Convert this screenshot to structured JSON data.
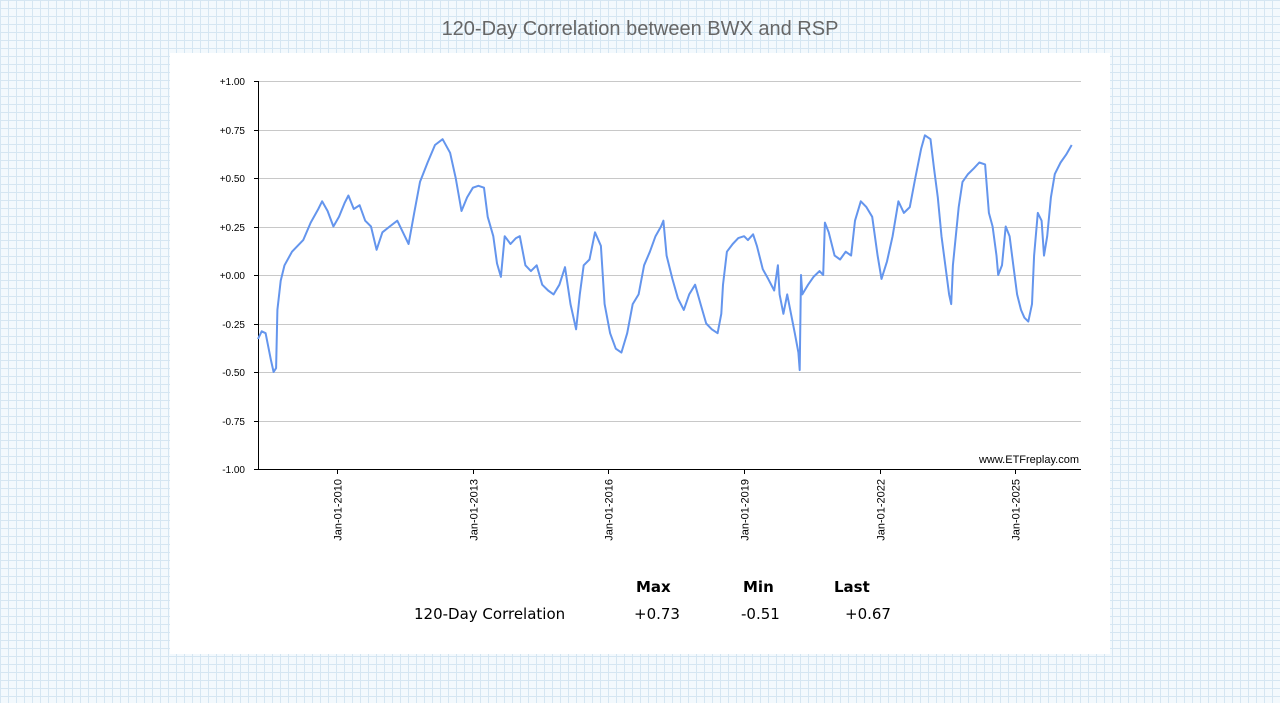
{
  "chart_data": {
    "type": "line",
    "title": "120-Day Correlation between BWX and RSP",
    "xlabel": "",
    "ylabel": "",
    "ylim": [
      -1.0,
      1.0
    ],
    "yticks": [
      "+1.00",
      "+0.75",
      "+0.50",
      "+0.25",
      "+0.00",
      "-0.25",
      "-0.50",
      "-0.75",
      "-1.00"
    ],
    "ytick_values": [
      1.0,
      0.75,
      0.5,
      0.25,
      0.0,
      -0.25,
      -0.5,
      -0.75,
      -1.0
    ],
    "xlim": [
      "2008-04-01",
      "2026-06-15"
    ],
    "xticks": [
      "Jan-01-2010",
      "Jan-01-2013",
      "Jan-01-2016",
      "Jan-01-2019",
      "Jan-01-2022",
      "Jan-01-2025"
    ],
    "xtick_dates": [
      "2010-01-01",
      "2013-01-01",
      "2016-01-01",
      "2019-01-01",
      "2022-01-01",
      "2025-01-01"
    ],
    "grid": "horizontal",
    "line_color": "#6495ed",
    "series": [
      {
        "name": "120-Day Correlation",
        "points": [
          [
            "2008-04-01",
            -0.33
          ],
          [
            "2008-05-01",
            -0.29
          ],
          [
            "2008-06-01",
            -0.3
          ],
          [
            "2008-07-15",
            -0.44
          ],
          [
            "2008-08-05",
            -0.5
          ],
          [
            "2008-08-25",
            -0.48
          ],
          [
            "2008-09-05",
            -0.18
          ],
          [
            "2008-10-01",
            -0.03
          ],
          [
            "2008-11-01",
            0.05
          ],
          [
            "2009-01-01",
            0.12
          ],
          [
            "2009-04-01",
            0.18
          ],
          [
            "2009-06-01",
            0.27
          ],
          [
            "2009-08-01",
            0.34
          ],
          [
            "2009-09-01",
            0.38
          ],
          [
            "2009-10-15",
            0.33
          ],
          [
            "2009-12-01",
            0.25
          ],
          [
            "2010-01-15",
            0.3
          ],
          [
            "2010-03-01",
            0.37
          ],
          [
            "2010-04-01",
            0.41
          ],
          [
            "2010-05-15",
            0.34
          ],
          [
            "2010-07-01",
            0.36
          ],
          [
            "2010-08-15",
            0.28
          ],
          [
            "2010-10-01",
            0.25
          ],
          [
            "2010-11-15",
            0.13
          ],
          [
            "2011-01-01",
            0.22
          ],
          [
            "2011-03-01",
            0.25
          ],
          [
            "2011-05-01",
            0.28
          ],
          [
            "2011-07-01",
            0.2
          ],
          [
            "2011-08-01",
            0.16
          ],
          [
            "2011-09-15",
            0.32
          ],
          [
            "2011-11-01",
            0.48
          ],
          [
            "2012-01-01",
            0.58
          ],
          [
            "2012-03-01",
            0.67
          ],
          [
            "2012-05-01",
            0.7
          ],
          [
            "2012-07-01",
            0.63
          ],
          [
            "2012-08-15",
            0.5
          ],
          [
            "2012-10-01",
            0.33
          ],
          [
            "2012-11-15",
            0.4
          ],
          [
            "2013-01-01",
            0.45
          ],
          [
            "2013-02-15",
            0.46
          ],
          [
            "2013-04-01",
            0.45
          ],
          [
            "2013-05-01",
            0.3
          ],
          [
            "2013-06-15",
            0.2
          ],
          [
            "2013-07-15",
            0.06
          ],
          [
            "2013-08-15",
            -0.01
          ],
          [
            "2013-09-15",
            0.2
          ],
          [
            "2013-11-01",
            0.16
          ],
          [
            "2013-12-15",
            0.19
          ],
          [
            "2014-01-15",
            0.2
          ],
          [
            "2014-03-01",
            0.05
          ],
          [
            "2014-04-15",
            0.02
          ],
          [
            "2014-06-01",
            0.05
          ],
          [
            "2014-07-15",
            -0.05
          ],
          [
            "2014-09-01",
            -0.08
          ],
          [
            "2014-10-15",
            -0.1
          ],
          [
            "2014-12-01",
            -0.05
          ],
          [
            "2015-01-15",
            0.04
          ],
          [
            "2015-03-01",
            -0.15
          ],
          [
            "2015-04-15",
            -0.28
          ],
          [
            "2015-05-15",
            -0.1
          ],
          [
            "2015-06-15",
            0.05
          ],
          [
            "2015-08-01",
            0.08
          ],
          [
            "2015-09-15",
            0.22
          ],
          [
            "2015-11-01",
            0.15
          ],
          [
            "2015-12-01",
            -0.15
          ],
          [
            "2016-01-15",
            -0.3
          ],
          [
            "2016-03-01",
            -0.38
          ],
          [
            "2016-04-15",
            -0.4
          ],
          [
            "2016-06-01",
            -0.3
          ],
          [
            "2016-07-15",
            -0.15
          ],
          [
            "2016-09-01",
            -0.1
          ],
          [
            "2016-10-15",
            0.05
          ],
          [
            "2016-12-01",
            0.12
          ],
          [
            "2017-01-15",
            0.2
          ],
          [
            "2017-03-01",
            0.25
          ],
          [
            "2017-03-20",
            0.28
          ],
          [
            "2017-04-15",
            0.1
          ],
          [
            "2017-06-01",
            -0.02
          ],
          [
            "2017-07-15",
            -0.12
          ],
          [
            "2017-09-01",
            -0.18
          ],
          [
            "2017-10-15",
            -0.1
          ],
          [
            "2017-12-01",
            -0.05
          ],
          [
            "2018-01-15",
            -0.15
          ],
          [
            "2018-03-01",
            -0.25
          ],
          [
            "2018-04-15",
            -0.28
          ],
          [
            "2018-06-01",
            -0.3
          ],
          [
            "2018-07-01",
            -0.2
          ],
          [
            "2018-07-15",
            -0.05
          ],
          [
            "2018-08-15",
            0.12
          ],
          [
            "2018-10-01",
            0.16
          ],
          [
            "2018-11-15",
            0.19
          ],
          [
            "2019-01-01",
            0.2
          ],
          [
            "2019-02-01",
            0.18
          ],
          [
            "2019-03-15",
            0.21
          ],
          [
            "2019-04-15",
            0.15
          ],
          [
            "2019-06-01",
            0.03
          ],
          [
            "2019-07-15",
            -0.02
          ],
          [
            "2019-09-01",
            -0.08
          ],
          [
            "2019-10-01",
            0.05
          ],
          [
            "2019-10-15",
            -0.1
          ],
          [
            "2019-11-15",
            -0.2
          ],
          [
            "2019-12-15",
            -0.1
          ],
          [
            "2020-01-15",
            -0.2
          ],
          [
            "2020-02-15",
            -0.3
          ],
          [
            "2020-03-15",
            -0.4
          ],
          [
            "2020-03-25",
            -0.49
          ],
          [
            "2020-04-05",
            0.0
          ],
          [
            "2020-04-15",
            -0.1
          ],
          [
            "2020-06-01",
            -0.05
          ],
          [
            "2020-07-15",
            -0.01
          ],
          [
            "2020-09-01",
            0.02
          ],
          [
            "2020-10-01",
            0.0
          ],
          [
            "2020-10-15",
            0.27
          ],
          [
            "2020-11-15",
            0.22
          ],
          [
            "2021-01-01",
            0.1
          ],
          [
            "2021-02-15",
            0.08
          ],
          [
            "2021-04-01",
            0.12
          ],
          [
            "2021-05-15",
            0.1
          ],
          [
            "2021-06-15",
            0.28
          ],
          [
            "2021-08-01",
            0.38
          ],
          [
            "2021-09-15",
            0.35
          ],
          [
            "2021-11-01",
            0.3
          ],
          [
            "2021-12-15",
            0.1
          ],
          [
            "2022-01-15",
            -0.02
          ],
          [
            "2022-03-01",
            0.07
          ],
          [
            "2022-04-15",
            0.2
          ],
          [
            "2022-06-01",
            0.38
          ],
          [
            "2022-07-15",
            0.32
          ],
          [
            "2022-09-01",
            0.35
          ],
          [
            "2022-10-15",
            0.5
          ],
          [
            "2022-12-01",
            0.65
          ],
          [
            "2023-01-01",
            0.72
          ],
          [
            "2023-02-15",
            0.7
          ],
          [
            "2023-03-15",
            0.55
          ],
          [
            "2023-04-15",
            0.4
          ],
          [
            "2023-05-15",
            0.2
          ],
          [
            "2023-06-15",
            0.05
          ],
          [
            "2023-07-15",
            -0.1
          ],
          [
            "2023-08-01",
            -0.15
          ],
          [
            "2023-08-15",
            0.05
          ],
          [
            "2023-10-01",
            0.35
          ],
          [
            "2023-11-01",
            0.48
          ],
          [
            "2023-12-15",
            0.52
          ],
          [
            "2024-02-01",
            0.55
          ],
          [
            "2024-03-15",
            0.58
          ],
          [
            "2024-05-01",
            0.57
          ],
          [
            "2024-06-01",
            0.32
          ],
          [
            "2024-07-01",
            0.25
          ],
          [
            "2024-08-01",
            0.1
          ],
          [
            "2024-08-15",
            0.0
          ],
          [
            "2024-09-15",
            0.05
          ],
          [
            "2024-10-15",
            0.25
          ],
          [
            "2024-11-15",
            0.2
          ],
          [
            "2024-12-15",
            0.05
          ],
          [
            "2025-01-15",
            -0.1
          ],
          [
            "2025-02-15",
            -0.18
          ],
          [
            "2025-03-15",
            -0.22
          ],
          [
            "2025-04-15",
            -0.24
          ],
          [
            "2025-05-15",
            -0.15
          ],
          [
            "2025-06-01",
            0.1
          ],
          [
            "2025-07-01",
            0.32
          ],
          [
            "2025-08-01",
            0.28
          ],
          [
            "2025-08-20",
            0.1
          ],
          [
            "2025-09-15",
            0.2
          ],
          [
            "2025-10-15",
            0.4
          ],
          [
            "2025-11-15",
            0.52
          ],
          [
            "2026-01-01",
            0.58
          ],
          [
            "2026-02-15",
            0.62
          ],
          [
            "2026-04-01",
            0.67
          ]
        ]
      }
    ],
    "watermark": "www.ETFreplay.com"
  },
  "stats_table": {
    "headers": [
      "Max",
      "Min",
      "Last"
    ],
    "row_label": "120-Day Correlation",
    "values": [
      "+0.73",
      "-0.51",
      "+0.67"
    ]
  }
}
